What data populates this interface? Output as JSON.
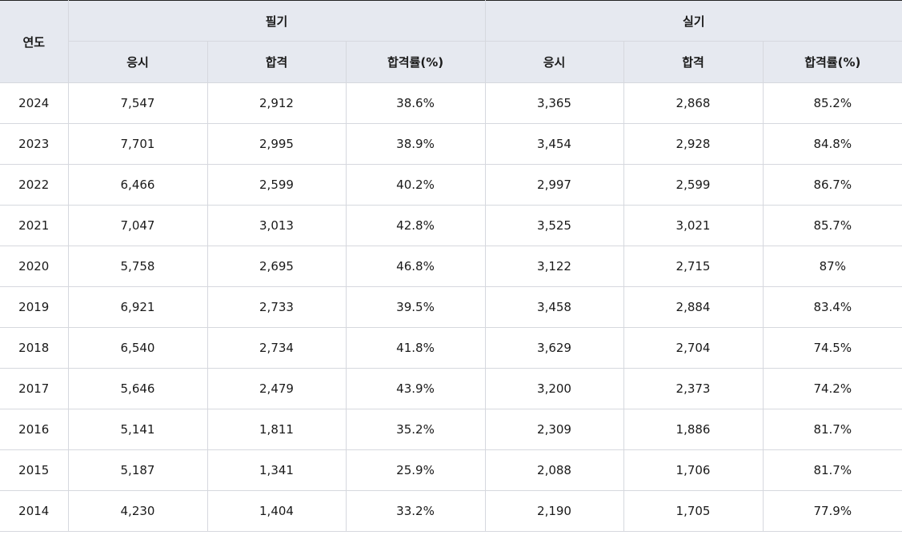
{
  "table": {
    "year_header": "연도",
    "groups": [
      {
        "label": "필기",
        "columns": [
          "응시",
          "합격",
          "합격률(%)"
        ]
      },
      {
        "label": "실기",
        "columns": [
          "응시",
          "합격",
          "합격률(%)"
        ]
      }
    ],
    "rows": [
      {
        "year": "2024",
        "written": [
          "7,547",
          "2,912",
          "38.6%"
        ],
        "practical": [
          "3,365",
          "2,868",
          "85.2%"
        ]
      },
      {
        "year": "2023",
        "written": [
          "7,701",
          "2,995",
          "38.9%"
        ],
        "practical": [
          "3,454",
          "2,928",
          "84.8%"
        ]
      },
      {
        "year": "2022",
        "written": [
          "6,466",
          "2,599",
          "40.2%"
        ],
        "practical": [
          "2,997",
          "2,599",
          "86.7%"
        ]
      },
      {
        "year": "2021",
        "written": [
          "7,047",
          "3,013",
          "42.8%"
        ],
        "practical": [
          "3,525",
          "3,021",
          "85.7%"
        ]
      },
      {
        "year": "2020",
        "written": [
          "5,758",
          "2,695",
          "46.8%"
        ],
        "practical": [
          "3,122",
          "2,715",
          "87%"
        ]
      },
      {
        "year": "2019",
        "written": [
          "6,921",
          "2,733",
          "39.5%"
        ],
        "practical": [
          "3,458",
          "2,884",
          "83.4%"
        ]
      },
      {
        "year": "2018",
        "written": [
          "6,540",
          "2,734",
          "41.8%"
        ],
        "practical": [
          "3,629",
          "2,704",
          "74.5%"
        ]
      },
      {
        "year": "2017",
        "written": [
          "5,646",
          "2,479",
          "43.9%"
        ],
        "practical": [
          "3,200",
          "2,373",
          "74.2%"
        ]
      },
      {
        "year": "2016",
        "written": [
          "5,141",
          "1,811",
          "35.2%"
        ],
        "practical": [
          "2,309",
          "1,886",
          "81.7%"
        ]
      },
      {
        "year": "2015",
        "written": [
          "5,187",
          "1,341",
          "25.9%"
        ],
        "practical": [
          "2,088",
          "1,706",
          "81.7%"
        ]
      },
      {
        "year": "2014",
        "written": [
          "4,230",
          "1,404",
          "33.2%"
        ],
        "practical": [
          "2,190",
          "1,705",
          "77.9%"
        ]
      }
    ]
  }
}
